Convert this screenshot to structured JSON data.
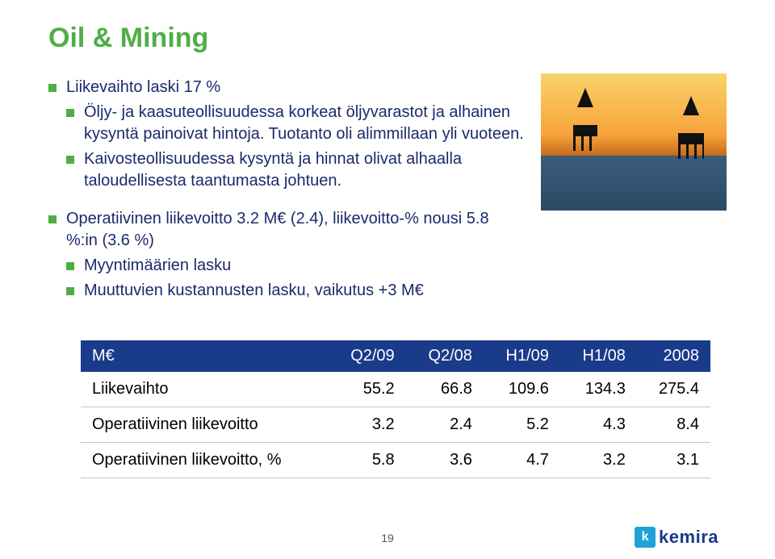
{
  "title": "Oil & Mining",
  "bullets": {
    "group1": {
      "lead": "Liikevaihto laski 17 %",
      "subs": [
        "Öljy- ja kaasuteollisuudessa korkeat öljyvarastot ja alhainen kysyntä painoivat hintoja. Tuotanto oli alimmillaan yli vuoteen.",
        "Kaivosteollisuudessa kysyntä ja hinnat olivat alhaalla taloudellisesta taantumasta johtuen."
      ]
    },
    "group2": {
      "lead": "Operatiivinen liikevoitto 3.2 M€ (2.4), liikevoitto-% nousi 5.8 %:in (3.6 %)",
      "subs": [
        "Myyntimäärien lasku",
        "Muuttuvien kustannusten lasku, vaikutus +3 M€"
      ]
    }
  },
  "table": {
    "columns": [
      "M€",
      "Q2/09",
      "Q2/08",
      "H1/09",
      "H1/08",
      "2008"
    ],
    "rows": [
      {
        "label": "Liikevaihto",
        "values": [
          "55.2",
          "66.8",
          "109.6",
          "134.3",
          "275.4"
        ]
      },
      {
        "label": "Operatiivinen liikevoitto",
        "values": [
          "3.2",
          "2.4",
          "5.2",
          "4.3",
          "8.4"
        ]
      },
      {
        "label": "Operatiivinen liikevoitto, %",
        "values": [
          "5.8",
          "3.6",
          "4.7",
          "3.2",
          "3.1"
        ]
      }
    ],
    "header_bg": "#1a3a8a",
    "header_color": "#ffffff",
    "row_border": "#bfc5d8",
    "fontsize": 20
  },
  "colors": {
    "title": "#4fad46",
    "bullet_text": "#1a2a6c",
    "bullet_marker": "#4fad46",
    "background": "#ffffff"
  },
  "page_number": "19",
  "logo_text": "kemira",
  "logo_icon_color": "#1ea2d8",
  "logo_text_color": "#1a3a8a"
}
